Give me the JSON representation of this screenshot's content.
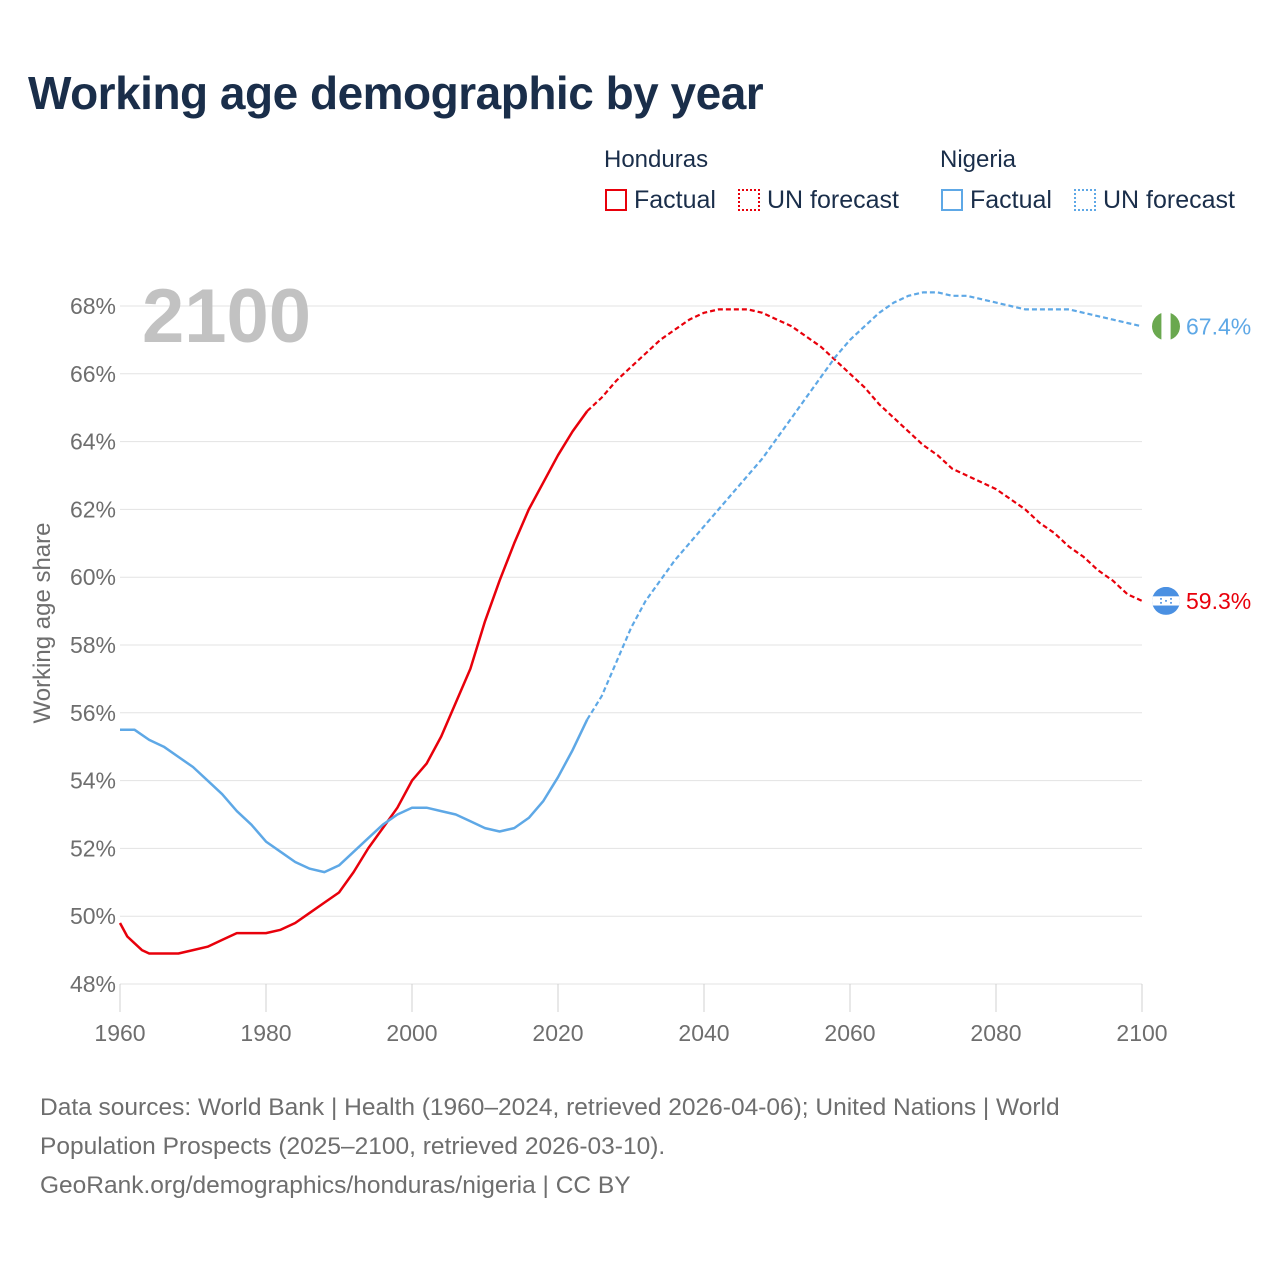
{
  "header": {
    "title": "Working age demographic by year"
  },
  "legend": {
    "groups": [
      {
        "name": "Honduras",
        "factual_label": "Factual",
        "forecast_label": "UN forecast",
        "color": "#e8000b"
      },
      {
        "name": "Nigeria",
        "factual_label": "Factual",
        "forecast_label": "UN forecast",
        "color": "#5ea8e6"
      }
    ]
  },
  "footer": {
    "line1": "Data sources: World Bank | Health (1960–2024, retrieved 2026-04-06); United Nations | World",
    "line2": "Population Prospects (2025–2100, retrieved 2026-03-10).",
    "line3": "GeoRank.org/demographics/honduras/nigeria | CC BY"
  },
  "chart_data": {
    "type": "line",
    "title": "Working age demographic by year",
    "year_watermark": "2100",
    "xlabel": "",
    "ylabel": "Working age share",
    "xlim": [
      1960,
      2100
    ],
    "ylim": [
      48,
      68
    ],
    "x_ticks": [
      1960,
      1980,
      2000,
      2020,
      2040,
      2060,
      2080,
      2100
    ],
    "y_ticks": [
      48,
      50,
      52,
      54,
      56,
      58,
      60,
      62,
      64,
      66,
      68
    ],
    "y_tick_suffix": "%",
    "grid": true,
    "factual_end_year": 2024,
    "series": [
      {
        "name": "Honduras",
        "color": "#e8000b",
        "end_label": "59.3%",
        "flag": "honduras-flag",
        "points": [
          [
            1960,
            49.8
          ],
          [
            1961,
            49.4
          ],
          [
            1962,
            49.2
          ],
          [
            1963,
            49.0
          ],
          [
            1964,
            48.9
          ],
          [
            1966,
            48.9
          ],
          [
            1968,
            48.9
          ],
          [
            1970,
            49.0
          ],
          [
            1972,
            49.1
          ],
          [
            1974,
            49.3
          ],
          [
            1976,
            49.5
          ],
          [
            1978,
            49.5
          ],
          [
            1980,
            49.5
          ],
          [
            1982,
            49.6
          ],
          [
            1984,
            49.8
          ],
          [
            1986,
            50.1
          ],
          [
            1988,
            50.4
          ],
          [
            1990,
            50.7
          ],
          [
            1992,
            51.3
          ],
          [
            1994,
            52.0
          ],
          [
            1996,
            52.6
          ],
          [
            1998,
            53.2
          ],
          [
            2000,
            54.0
          ],
          [
            2002,
            54.5
          ],
          [
            2004,
            55.3
          ],
          [
            2006,
            56.3
          ],
          [
            2008,
            57.3
          ],
          [
            2010,
            58.7
          ],
          [
            2012,
            59.9
          ],
          [
            2014,
            61.0
          ],
          [
            2016,
            62.0
          ],
          [
            2018,
            62.8
          ],
          [
            2020,
            63.6
          ],
          [
            2022,
            64.3
          ],
          [
            2024,
            64.9
          ],
          [
            2026,
            65.3
          ],
          [
            2028,
            65.8
          ],
          [
            2030,
            66.2
          ],
          [
            2032,
            66.6
          ],
          [
            2034,
            67.0
          ],
          [
            2036,
            67.3
          ],
          [
            2038,
            67.6
          ],
          [
            2040,
            67.8
          ],
          [
            2042,
            67.9
          ],
          [
            2044,
            67.9
          ],
          [
            2046,
            67.9
          ],
          [
            2048,
            67.8
          ],
          [
            2050,
            67.6
          ],
          [
            2052,
            67.4
          ],
          [
            2054,
            67.1
          ],
          [
            2056,
            66.8
          ],
          [
            2058,
            66.4
          ],
          [
            2060,
            66.0
          ],
          [
            2062,
            65.6
          ],
          [
            2064,
            65.1
          ],
          [
            2066,
            64.7
          ],
          [
            2068,
            64.3
          ],
          [
            2070,
            63.9
          ],
          [
            2072,
            63.6
          ],
          [
            2074,
            63.2
          ],
          [
            2076,
            63.0
          ],
          [
            2078,
            62.8
          ],
          [
            2080,
            62.6
          ],
          [
            2082,
            62.3
          ],
          [
            2084,
            62.0
          ],
          [
            2086,
            61.6
          ],
          [
            2088,
            61.3
          ],
          [
            2090,
            60.9
          ],
          [
            2092,
            60.6
          ],
          [
            2094,
            60.2
          ],
          [
            2096,
            59.9
          ],
          [
            2098,
            59.5
          ],
          [
            2100,
            59.3
          ]
        ]
      },
      {
        "name": "Nigeria",
        "color": "#5ea8e6",
        "end_label": "67.4%",
        "flag": "nigeria-flag",
        "points": [
          [
            1960,
            55.5
          ],
          [
            1962,
            55.5
          ],
          [
            1964,
            55.2
          ],
          [
            1966,
            55.0
          ],
          [
            1968,
            54.7
          ],
          [
            1970,
            54.4
          ],
          [
            1972,
            54.0
          ],
          [
            1974,
            53.6
          ],
          [
            1976,
            53.1
          ],
          [
            1978,
            52.7
          ],
          [
            1980,
            52.2
          ],
          [
            1982,
            51.9
          ],
          [
            1984,
            51.6
          ],
          [
            1986,
            51.4
          ],
          [
            1988,
            51.3
          ],
          [
            1990,
            51.5
          ],
          [
            1992,
            51.9
          ],
          [
            1994,
            52.3
          ],
          [
            1996,
            52.7
          ],
          [
            1998,
            53.0
          ],
          [
            2000,
            53.2
          ],
          [
            2002,
            53.2
          ],
          [
            2004,
            53.1
          ],
          [
            2006,
            53.0
          ],
          [
            2008,
            52.8
          ],
          [
            2010,
            52.6
          ],
          [
            2012,
            52.5
          ],
          [
            2014,
            52.6
          ],
          [
            2016,
            52.9
          ],
          [
            2018,
            53.4
          ],
          [
            2020,
            54.1
          ],
          [
            2022,
            54.9
          ],
          [
            2024,
            55.8
          ],
          [
            2026,
            56.5
          ],
          [
            2028,
            57.5
          ],
          [
            2030,
            58.5
          ],
          [
            2032,
            59.3
          ],
          [
            2034,
            59.9
          ],
          [
            2036,
            60.5
          ],
          [
            2038,
            61.0
          ],
          [
            2040,
            61.5
          ],
          [
            2042,
            62.0
          ],
          [
            2044,
            62.5
          ],
          [
            2046,
            63.0
          ],
          [
            2048,
            63.5
          ],
          [
            2050,
            64.1
          ],
          [
            2052,
            64.7
          ],
          [
            2054,
            65.3
          ],
          [
            2056,
            65.9
          ],
          [
            2058,
            66.5
          ],
          [
            2060,
            67.0
          ],
          [
            2062,
            67.4
          ],
          [
            2064,
            67.8
          ],
          [
            2066,
            68.1
          ],
          [
            2068,
            68.3
          ],
          [
            2070,
            68.4
          ],
          [
            2072,
            68.4
          ],
          [
            2074,
            68.3
          ],
          [
            2076,
            68.3
          ],
          [
            2078,
            68.2
          ],
          [
            2080,
            68.1
          ],
          [
            2082,
            68.0
          ],
          [
            2084,
            67.9
          ],
          [
            2086,
            67.9
          ],
          [
            2088,
            67.9
          ],
          [
            2090,
            67.9
          ],
          [
            2092,
            67.8
          ],
          [
            2094,
            67.7
          ],
          [
            2096,
            67.6
          ],
          [
            2098,
            67.5
          ],
          [
            2100,
            67.4
          ]
        ]
      }
    ]
  }
}
